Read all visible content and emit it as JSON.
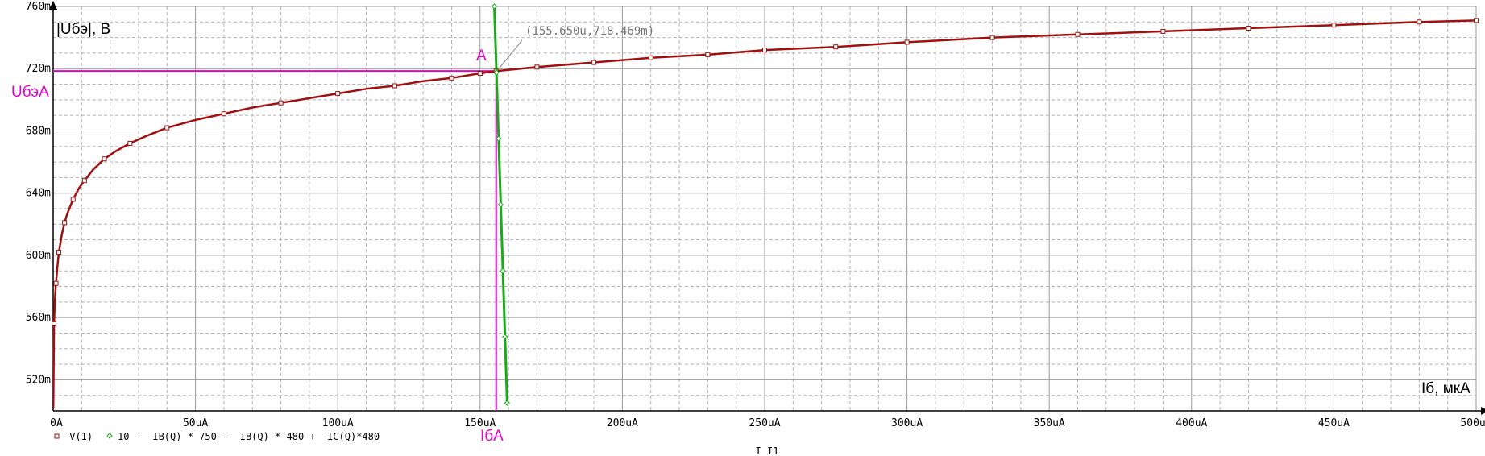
{
  "chart_data": {
    "type": "line",
    "x_axis": {
      "label": "Iб, мкА",
      "title": "I_I1",
      "range": [
        0,
        500
      ],
      "unit": "uA",
      "tick_values": [
        0,
        50,
        100,
        150,
        200,
        250,
        300,
        350,
        400,
        450,
        500
      ],
      "tick_labels": [
        "0A",
        "50uA",
        "100uA",
        "150uA",
        "200uA",
        "250uA",
        "300uA",
        "350uA",
        "400uA",
        "450uA",
        "500uA"
      ],
      "minor_divisions": 5
    },
    "y_axis": {
      "label": "|Uбэ|, В",
      "range": [
        500,
        760
      ],
      "unit": "mV",
      "tick_values": [
        520,
        560,
        600,
        640,
        680,
        720,
        760
      ],
      "tick_labels": [
        "520m",
        "560m",
        "600m",
        "640m",
        "680m",
        "720m",
        "760m"
      ],
      "minor_step": 10
    },
    "grid": true,
    "series": [
      {
        "name": "-V(1)",
        "color": "#a01010",
        "marker": "square",
        "x": [
          0.05,
          0.3,
          0.6,
          1,
          1.5,
          2,
          3,
          4,
          5,
          7,
          9,
          11,
          14,
          18,
          22,
          27,
          33,
          40,
          50,
          60,
          70,
          80,
          90,
          100,
          110,
          120,
          130,
          140,
          150,
          155.65,
          170,
          190,
          210,
          230,
          250,
          275,
          300,
          330,
          360,
          390,
          420,
          450,
          480,
          500
        ],
        "y": [
          502,
          556,
          571,
          582,
          593,
          602,
          613,
          621,
          627,
          636,
          643,
          648,
          655,
          662,
          667,
          672,
          677,
          682,
          687,
          691,
          695,
          698,
          701,
          704,
          707,
          709,
          712,
          714,
          717,
          718.469,
          721,
          724,
          727,
          729,
          732,
          734,
          737,
          740,
          742,
          744,
          746,
          748,
          750,
          751
        ]
      },
      {
        "name": "10 -  IB(Q) * 750 -  IB(Q) * 480 +  IC(Q)*480",
        "color": "#1aaa1a",
        "marker": "diamond",
        "x": [
          155.0,
          159.5
        ],
        "y": [
          760,
          505
        ]
      }
    ],
    "legend": [
      "-V(1)",
      "10 -  IB(Q) * 750 -  IB(Q) * 480 +  IC(Q)*480"
    ],
    "legend_position": "bottom-left",
    "annotations": {
      "point_label": "A",
      "cursor_readout": "(155.650u,718.469m)",
      "y_marker_label": "UбэA",
      "x_marker_label": "IбA",
      "marker_color": "#e600c8",
      "operating_point": {
        "x": 155.65,
        "y": 718.469
      }
    }
  }
}
